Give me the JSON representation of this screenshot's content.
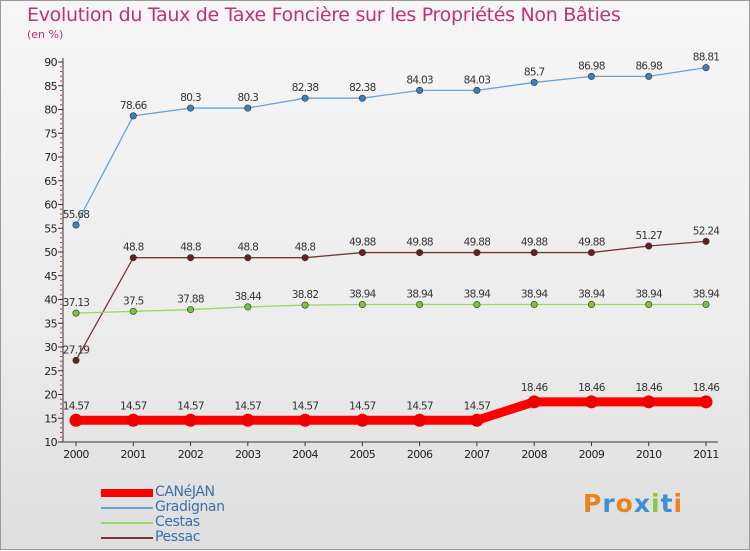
{
  "title": "Evolution du Taux de Taxe Foncière sur les Propriétés Non Bâties",
  "unit_label": "(en %)",
  "logo": {
    "text": "Proxiti",
    "letters": [
      "P",
      "r",
      "o",
      "x",
      "i",
      "t",
      "i"
    ],
    "letter_colors": [
      "#e8841a",
      "#3d8fd6",
      "#e8841a",
      "#3d8fd6",
      "#8cc63f",
      "#3d8fd6",
      "#e8841a"
    ]
  },
  "chart_data": {
    "type": "line",
    "title": "Evolution du Taux de Taxe Foncière sur les Propriétés Non Bâties",
    "xlabel": "",
    "ylabel": "(en %)",
    "ylim": [
      10,
      90
    ],
    "yticks": [
      10,
      15,
      20,
      25,
      30,
      35,
      40,
      45,
      50,
      55,
      60,
      65,
      70,
      75,
      80,
      85,
      90
    ],
    "grid": false,
    "legend_position": "bottom-left",
    "categories": [
      "2000",
      "2001",
      "2002",
      "2003",
      "2004",
      "2005",
      "2006",
      "2007",
      "2008",
      "2009",
      "2010",
      "2011"
    ],
    "series": [
      {
        "name": "CANéJAN",
        "color": "#ff0000",
        "marker_color": "#ee0000",
        "bold": true,
        "values": [
          14.57,
          14.57,
          14.57,
          14.57,
          14.57,
          14.57,
          14.57,
          14.57,
          18.46,
          18.46,
          18.46,
          18.46
        ],
        "labels": [
          "14.57",
          "14.57",
          "14.57",
          "14.57",
          "14.57",
          "14.57",
          "14.57",
          "14.57",
          "18.46",
          "18.46",
          "18.46",
          "18.46"
        ]
      },
      {
        "name": "Gradignan",
        "color": "#6aa3d6",
        "marker_color": "#3b7fbf",
        "bold": false,
        "values": [
          55.68,
          78.66,
          80.3,
          80.3,
          82.38,
          82.38,
          84.03,
          84.03,
          85.7,
          86.98,
          86.98,
          88.81
        ],
        "labels": [
          "55.68",
          "78.66",
          "80.3",
          "80.3",
          "82.38",
          "82.38",
          "84.03",
          "84.03",
          "85.7",
          "86.98",
          "86.98",
          "88.81"
        ]
      },
      {
        "name": "Cestas",
        "color": "#99d85a",
        "marker_color": "#7cc23c",
        "bold": false,
        "values": [
          37.13,
          37.5,
          37.88,
          38.44,
          38.82,
          38.94,
          38.94,
          38.94,
          38.94,
          38.94,
          38.94,
          38.94
        ],
        "labels": [
          "37.13",
          "37.5",
          "37.88",
          "38.44",
          "38.82",
          "38.94",
          "38.94",
          "38.94",
          "38.94",
          "38.94",
          "38.94",
          "38.94"
        ]
      },
      {
        "name": "Pessac",
        "color": "#7a3636",
        "marker_color": "#6a1f1f",
        "bold": false,
        "values": [
          27.19,
          48.8,
          48.8,
          48.8,
          48.8,
          49.88,
          49.88,
          49.88,
          49.88,
          49.88,
          51.27,
          52.24
        ],
        "labels": [
          "27.19",
          "48.8",
          "48.8",
          "48.8",
          "48.8",
          "49.88",
          "49.88",
          "49.88",
          "49.88",
          "49.88",
          "51.27",
          "52.24"
        ]
      }
    ]
  }
}
